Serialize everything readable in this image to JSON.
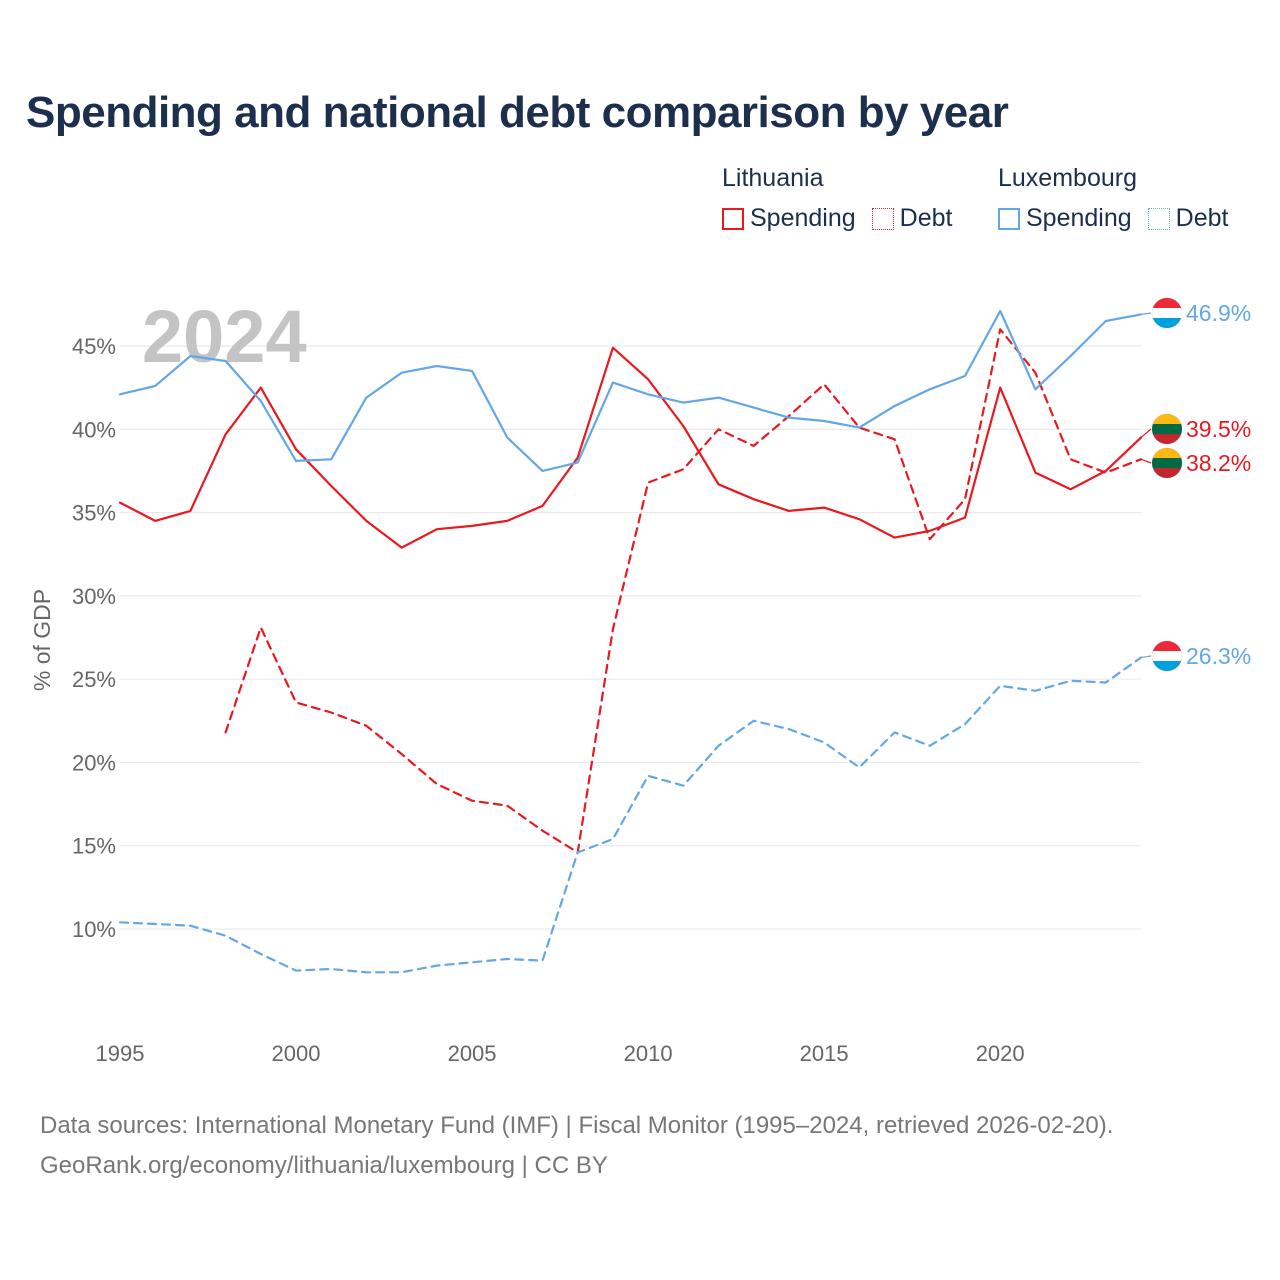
{
  "chart_data": {
    "type": "line",
    "title": "Spending and national debt comparison by year",
    "ylabel": "% of GDP",
    "xlabel": "",
    "year_watermark": "2024",
    "xlim": [
      1995,
      2024
    ],
    "ylim": [
      5,
      48
    ],
    "x_ticks": [
      1995,
      2000,
      2005,
      2010,
      2015,
      2020
    ],
    "x_tick_labels": [
      "1995",
      "2000",
      "2005",
      "2010",
      "2015",
      "2020"
    ],
    "y_ticks": [
      10,
      15,
      20,
      25,
      30,
      35,
      40,
      45
    ],
    "y_tick_labels": [
      "10%",
      "15%",
      "20%",
      "25%",
      "30%",
      "35%",
      "40%",
      "45%"
    ],
    "grid": true,
    "x": [
      1995,
      1996,
      1997,
      1998,
      1999,
      2000,
      2001,
      2002,
      2003,
      2004,
      2005,
      2006,
      2007,
      2008,
      2009,
      2010,
      2011,
      2012,
      2013,
      2014,
      2015,
      2016,
      2017,
      2018,
      2019,
      2020,
      2021,
      2022,
      2023,
      2024
    ],
    "series": [
      {
        "name": "Spending",
        "country": "Lithuania",
        "color": "#e8191f",
        "dash": false,
        "values": [
          35.6,
          34.5,
          35.1,
          39.7,
          42.5,
          38.8,
          36.6,
          34.5,
          32.9,
          34.0,
          34.2,
          34.5,
          35.4,
          38.3,
          44.9,
          43.0,
          40.2,
          36.7,
          35.8,
          35.1,
          35.3,
          34.6,
          33.5,
          33.9,
          34.7,
          42.5,
          37.4,
          36.4,
          37.5,
          39.5
        ],
        "end_label": "39.5%"
      },
      {
        "name": "Debt",
        "country": "Lithuania",
        "color": "#e8191f",
        "dash": true,
        "values": [
          null,
          null,
          null,
          21.8,
          28.1,
          23.6,
          23.0,
          22.2,
          20.5,
          18.7,
          17.7,
          17.4,
          15.9,
          14.6,
          28.0,
          36.8,
          37.6,
          40.0,
          39.0,
          40.8,
          42.7,
          40.1,
          39.4,
          33.4,
          35.8,
          46.0,
          43.4,
          38.2,
          37.4,
          38.2
        ],
        "end_label": "38.2%"
      },
      {
        "name": "Spending",
        "country": "Luxembourg",
        "color": "#63a7e6",
        "dash": false,
        "values": [
          42.1,
          42.6,
          44.4,
          44.1,
          41.7,
          38.1,
          38.2,
          41.9,
          43.4,
          43.8,
          43.5,
          39.5,
          37.5,
          38.0,
          42.8,
          42.1,
          41.6,
          41.9,
          41.3,
          40.7,
          40.5,
          40.1,
          41.4,
          42.4,
          43.2,
          47.1,
          42.4,
          44.4,
          46.5,
          46.9
        ],
        "end_label": "46.9%"
      },
      {
        "name": "Debt",
        "country": "Luxembourg",
        "color": "#63a7e6",
        "dash": true,
        "values": [
          10.4,
          10.3,
          10.2,
          9.6,
          8.5,
          7.5,
          7.6,
          7.4,
          7.4,
          7.8,
          8.0,
          8.2,
          8.1,
          14.6,
          15.4,
          19.2,
          18.6,
          21.0,
          22.5,
          22.0,
          21.2,
          19.7,
          21.8,
          21.0,
          22.3,
          24.6,
          24.3,
          24.9,
          24.8,
          26.3
        ],
        "end_label": "26.3%"
      }
    ],
    "legend": {
      "placement": "top-right",
      "groups": [
        {
          "title": "Lithuania",
          "color": "#e8191f",
          "items": [
            {
              "label": "Spending",
              "style": "solid"
            },
            {
              "label": "Debt",
              "style": "dotted"
            }
          ]
        },
        {
          "title": "Luxembourg",
          "color": "#63a7e6",
          "items": [
            {
              "label": "Spending",
              "style": "solid"
            },
            {
              "label": "Debt",
              "style": "dotted"
            }
          ]
        }
      ]
    },
    "colors": {
      "lithuania": "#e8191f",
      "luxembourg": "#63a7e6",
      "grid": "#e6e6e6",
      "axis_text": "#666666",
      "title": "#1c2f4d",
      "watermark": "#c4c4c4"
    },
    "flags": {
      "lithuania": [
        "#fdb913",
        "#006a44",
        "#c1272d"
      ],
      "luxembourg": [
        "#ed2939",
        "#ffffff",
        "#00a1de"
      ]
    }
  },
  "footer": {
    "source_line": "Data sources: International Monetary Fund (IMF) | Fiscal Monitor (1995–2024, retrieved 2026-02-20).",
    "credit_line": "GeoRank.org/economy/lithuania/luxembourg | CC BY"
  }
}
